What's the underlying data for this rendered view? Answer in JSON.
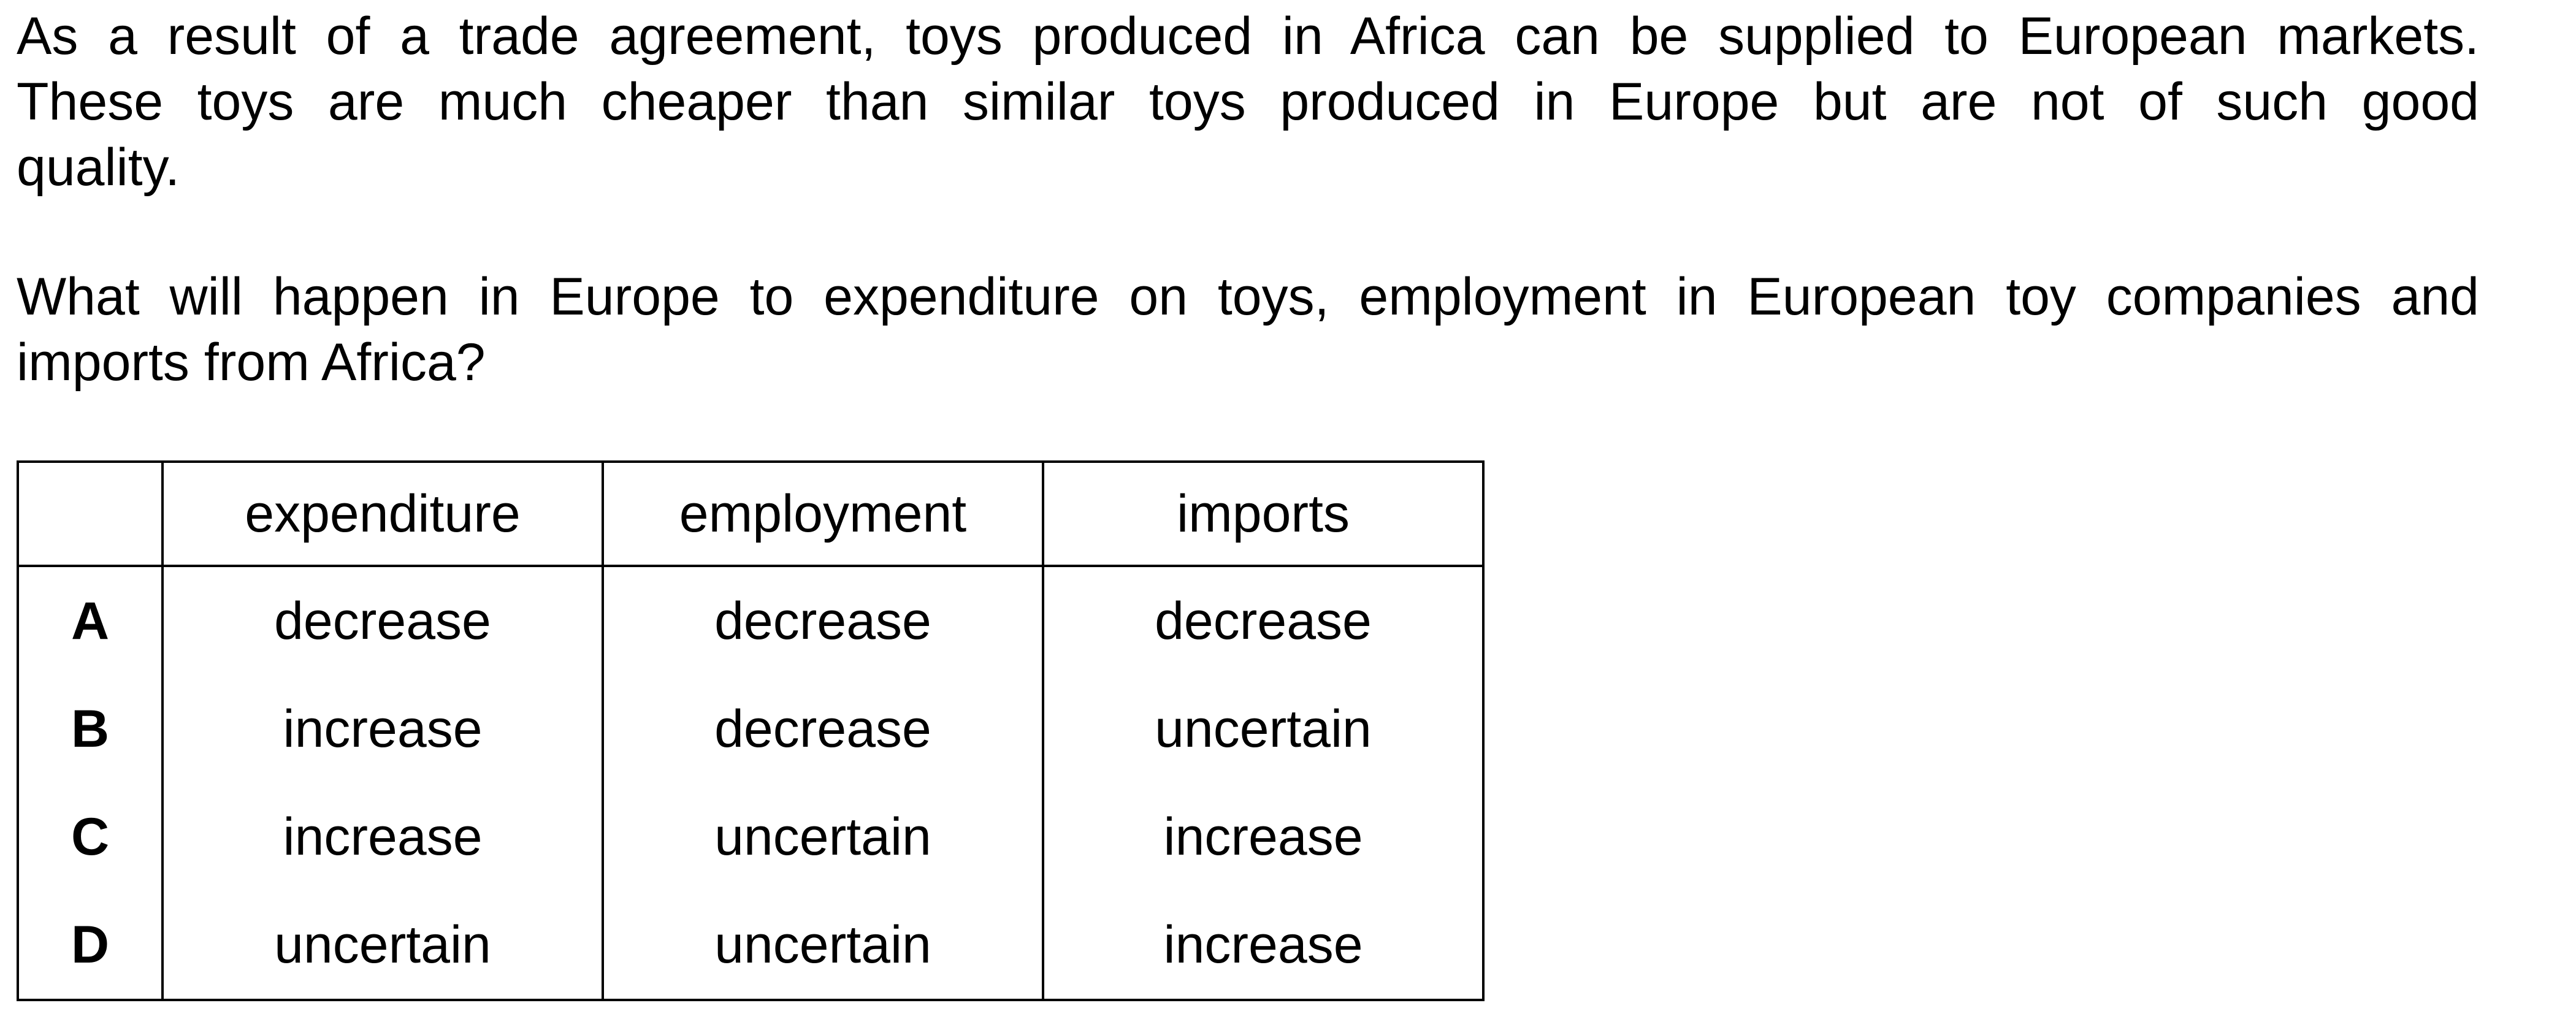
{
  "question": {
    "stem_lines": [
      "As a result of a trade agreement, toys produced in Africa can be supplied to European markets.",
      "These toys are much cheaper than similar toys produced in Europe but are not of such good",
      "quality."
    ],
    "prompt_lines": [
      "What will happen in Europe to expenditure on toys, employment in European toy companies and",
      "imports from Africa?"
    ]
  },
  "table": {
    "headers": [
      "",
      "expenditure",
      "employment",
      "imports"
    ],
    "rows": [
      {
        "key": "A",
        "expenditure": "decrease",
        "employment": "decrease",
        "imports": "decrease"
      },
      {
        "key": "B",
        "expenditure": "increase",
        "employment": "decrease",
        "imports": "uncertain"
      },
      {
        "key": "C",
        "expenditure": "increase",
        "employment": "uncertain",
        "imports": "increase"
      },
      {
        "key": "D",
        "expenditure": "uncertain",
        "employment": "uncertain",
        "imports": "increase"
      }
    ]
  }
}
